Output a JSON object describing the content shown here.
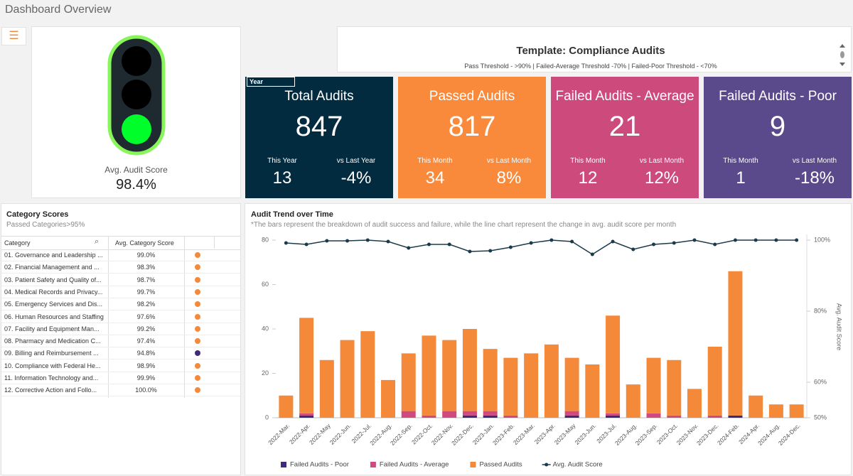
{
  "header": {
    "title": "Dashboard Overview"
  },
  "gauge": {
    "label": "Avg. Audit Score",
    "value": "98.4%"
  },
  "template": {
    "title": "Template: Compliance Audits",
    "subtitle": "Pass Threshold - >90% | Failed-Average Threshold -70% | Failed-Poor Threshold - <70%"
  },
  "filter_tag": "Year",
  "kpis": [
    {
      "title": "Total Audits",
      "value": "847",
      "left_label": "This Year",
      "left_value": "13",
      "right_label": "vs Last Year",
      "right_value": "-4%",
      "color": "#032b3f"
    },
    {
      "title": "Passed Audits",
      "value": "817",
      "left_label": "This Month",
      "left_value": "34",
      "right_label": "vs Last Month",
      "right_value": "8%",
      "color": "#f98a3c"
    },
    {
      "title": "Failed Audits - Average",
      "value": "21",
      "left_label": "This Month",
      "left_value": "12",
      "right_label": "vs Last Month",
      "right_value": "12%",
      "color": "#cd4a7d"
    },
    {
      "title": "Failed Audits - Poor",
      "value": "9",
      "left_label": "This Month",
      "left_value": "1",
      "right_label": "vs Last Month",
      "right_value": "-18%",
      "color": "#5b4a8b"
    }
  ],
  "category_scores": {
    "title": "Category Scores",
    "subtitle": "Passed Categories>95%",
    "columns": [
      "Category",
      "Avg. Category Score"
    ],
    "rows": [
      {
        "category": "01. Governance and Leadership ...",
        "score": "99.0%",
        "indicator": "#f5893a"
      },
      {
        "category": "02. Financial Management and ...",
        "score": "98.3%",
        "indicator": "#f5893a"
      },
      {
        "category": "03. Patient Safety and Quality of...",
        "score": "98.7%",
        "indicator": "#f5893a"
      },
      {
        "category": "04. Medical Records and Privacy...",
        "score": "99.7%",
        "indicator": "#f5893a"
      },
      {
        "category": "05. Emergency Services and Dis...",
        "score": "98.2%",
        "indicator": "#f5893a"
      },
      {
        "category": "06. Human Resources and Staffing",
        "score": "97.6%",
        "indicator": "#f5893a"
      },
      {
        "category": "07. Facility and Equipment Man...",
        "score": "99.2%",
        "indicator": "#f5893a"
      },
      {
        "category": "08. Pharmacy and Medication C...",
        "score": "97.4%",
        "indicator": "#f5893a"
      },
      {
        "category": "09. Billing and Reimbursement ...",
        "score": "94.8%",
        "indicator": "#3f2a7a"
      },
      {
        "category": "10. Compliance with Federal He...",
        "score": "98.9%",
        "indicator": "#f5893a"
      },
      {
        "category": "11. Information Technology and...",
        "score": "99.9%",
        "indicator": "#f5893a"
      },
      {
        "category": "12. Corrective Action and Follo...",
        "score": "100.0%",
        "indicator": "#f5893a"
      }
    ]
  },
  "chart_data": {
    "type": "bar",
    "stacked": true,
    "title": "Audit Trend over Time",
    "note": "*The bars represent the breakdown of audit success and failure, while the line chart represent the change in avg. audit score per month",
    "categories": [
      "2022-Mar.",
      "2022-Apr.",
      "2022-May",
      "2022-Jun.",
      "2022-Jul.",
      "2022-Aug.",
      "2022-Sep.",
      "2022-Oct.",
      "2022-Nov.",
      "2022-Dec.",
      "2023-Jan.",
      "2023-Feb.",
      "2023-Mar.",
      "2023-Apr.",
      "2023-May",
      "2023-Jun.",
      "2023-Jul.",
      "2023-Aug.",
      "2023-Sep.",
      "2023-Oct.",
      "2023-Nov.",
      "2023-Dec.",
      "2024-Feb.",
      "2024-Apr.",
      "2024-Aug.",
      "2024-Dec."
    ],
    "series": [
      {
        "name": "Failed Audits - Poor",
        "color": "#3f2a7a",
        "values": [
          0,
          1,
          0,
          0,
          0,
          0,
          0,
          0,
          0,
          1,
          1,
          0,
          0,
          0,
          1,
          0,
          1,
          0,
          0,
          0,
          0,
          0,
          1,
          0,
          0,
          0
        ]
      },
      {
        "name": "Failed Audits - Average",
        "color": "#d04a7f",
        "values": [
          0,
          1,
          0,
          0,
          0,
          0,
          3,
          1,
          3,
          2,
          2,
          1,
          0,
          0,
          2,
          0,
          1,
          0,
          2,
          1,
          0,
          1,
          0,
          0,
          0,
          0
        ]
      },
      {
        "name": "Passed Audits",
        "color": "#f5893a",
        "values": [
          10,
          43,
          26,
          35,
          39,
          17,
          26,
          36,
          32,
          37,
          28,
          26,
          29,
          33,
          24,
          24,
          44,
          15,
          25,
          25,
          13,
          31,
          65,
          10,
          6,
          6
        ]
      },
      {
        "name": "Avg. Audit Score",
        "type": "line",
        "axis": "y2",
        "color": "#1b3a4b",
        "values": [
          99.2,
          98.8,
          99.8,
          99.8,
          100,
          99.6,
          97.8,
          98.8,
          98.8,
          96.8,
          97,
          98,
          99.2,
          100,
          99.6,
          96,
          99.6,
          97.4,
          98.8,
          99.2,
          100,
          98.8,
          100,
          100,
          100,
          100
        ]
      }
    ],
    "ylim": [
      0,
      80
    ],
    "yticks": [
      0,
      20,
      40,
      60,
      80
    ],
    "y2lim": [
      50,
      100
    ],
    "y2ticks": [
      {
        "value": 50,
        "label": "50%"
      },
      {
        "value": 60,
        "label": "60%"
      },
      {
        "value": 80,
        "label": "80%"
      },
      {
        "value": 100,
        "label": "100%"
      }
    ],
    "y2label": "Avg. Audit Score",
    "grid": false,
    "legend": "bottom"
  }
}
